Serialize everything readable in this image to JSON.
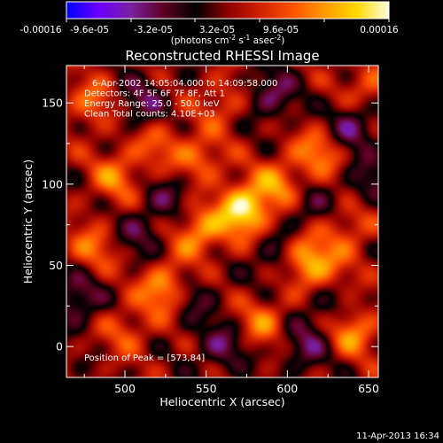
{
  "colorbar": {
    "ticks": [
      "-0.00016",
      "-9.6e-05",
      "-3.2e-05",
      "3.2e-05",
      "9.6e-05",
      "0.00016"
    ],
    "units_main": "(photons cm",
    "units_exp1": "-2",
    "units_mid": " s",
    "units_exp2": "-1",
    "units_tail": " asec",
    "units_exp3": "-2",
    "units_close": ")",
    "colors": [
      "#0000ff",
      "#6a00ff",
      "#7a1fa0",
      "#600020",
      "#000000",
      "#8b0000",
      "#d02000",
      "#ff5000",
      "#ff9a00",
      "#ffd800",
      "#ffffe0"
    ]
  },
  "chart_data": {
    "type": "heatmap",
    "title": "Reconstructed RHESSI Image",
    "xlabel": "Heliocentric X (arcsec)",
    "ylabel": "Heliocentric Y (arcsec)",
    "xlim": [
      464,
      656
    ],
    "ylim": [
      -19,
      173
    ],
    "xticks": [
      500,
      550,
      600,
      650
    ],
    "yticks": [
      0,
      50,
      100,
      150
    ],
    "annotations": [
      "6-Apr-2002 14:05:04.000 to 14:09:58.000",
      "Detectors: 4F 5F 6F 7F 8F, Att 1",
      "Energy Range: 25.0 - 50.0 keV",
      "Clean      Total counts: 4.10E+03"
    ],
    "peak_label": "Position of Peak = [573,84]",
    "peak": [
      573,
      84
    ],
    "blobs": [
      {
        "x": 573,
        "y": 84,
        "v": 1.0
      },
      {
        "x": 610,
        "y": 55,
        "v": 0.85
      },
      {
        "x": 525,
        "y": 35,
        "v": 0.75
      },
      {
        "x": 545,
        "y": 70,
        "v": 0.65
      },
      {
        "x": 595,
        "y": 100,
        "v": 0.55
      },
      {
        "x": 480,
        "y": 60,
        "v": 0.45
      },
      {
        "x": 495,
        "y": 105,
        "v": 0.5
      },
      {
        "x": 640,
        "y": 10,
        "v": 0.6
      },
      {
        "x": 500,
        "y": 10,
        "v": 0.35
      },
      {
        "x": 585,
        "y": 15,
        "v": 0.5
      },
      {
        "x": 620,
        "y": 120,
        "v": 0.55
      },
      {
        "x": 560,
        "y": 150,
        "v": 0.35
      },
      {
        "x": 480,
        "y": 150,
        "v": 0.45
      },
      {
        "x": 520,
        "y": 125,
        "v": 0.35
      },
      {
        "x": 650,
        "y": 160,
        "v": 0.4
      },
      {
        "x": 545,
        "y": 115,
        "v": 0.5
      },
      {
        "x": 640,
        "y": 75,
        "v": 0.4
      },
      {
        "x": 625,
        "y": 45,
        "v": 0.35
      },
      {
        "x": 596,
        "y": 55,
        "v": -0.5
      },
      {
        "x": 540,
        "y": 30,
        "v": -0.4
      },
      {
        "x": 640,
        "y": 135,
        "v": -0.55
      },
      {
        "x": 590,
        "y": 155,
        "v": -0.5
      },
      {
        "x": 510,
        "y": 150,
        "v": -0.45
      },
      {
        "x": 560,
        "y": 0,
        "v": -0.45
      },
      {
        "x": 470,
        "y": 30,
        "v": -0.55
      },
      {
        "x": 510,
        "y": 70,
        "v": -0.4
      },
      {
        "x": 612,
        "y": 85,
        "v": -0.35
      },
      {
        "x": 530,
        "y": 95,
        "v": -0.35
      },
      {
        "x": 650,
        "y": 100,
        "v": -0.4
      },
      {
        "x": 610,
        "y": 0,
        "v": -0.45
      },
      {
        "x": 625,
        "y": 25,
        "v": -0.35
      }
    ]
  },
  "timestamp": "11-Apr-2013 16:34"
}
